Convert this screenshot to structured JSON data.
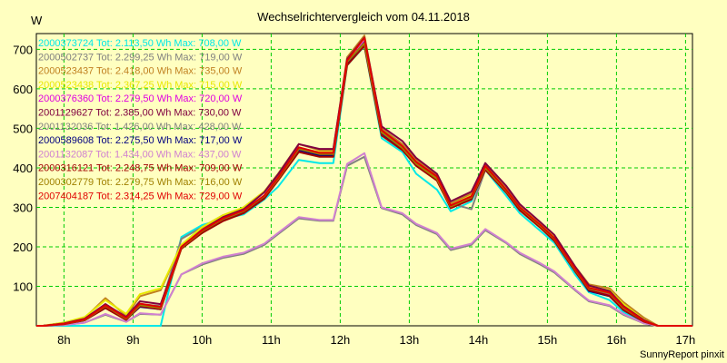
{
  "chart_data": {
    "type": "line",
    "title": "Wechselrichtervergleich vom 04.11.2018",
    "ylabel": "W",
    "xlabel": "",
    "footer": "SunnyReport pinxit",
    "xlim": [
      7.6,
      17.1
    ],
    "ylim": [
      0,
      740
    ],
    "x_ticks": [
      8,
      9,
      10,
      11,
      12,
      13,
      14,
      15,
      16,
      17
    ],
    "x_tick_labels": [
      "8h",
      "9h",
      "10h",
      "11h",
      "12h",
      "13h",
      "14h",
      "15h",
      "16h",
      "17h"
    ],
    "y_ticks": [
      100,
      200,
      300,
      400,
      500,
      600,
      700
    ],
    "y_tick_labels": [
      "100",
      "200",
      "300",
      "400",
      "500",
      "600",
      "700"
    ],
    "grid": true,
    "legend_position": "top-left",
    "x": [
      7.6,
      7.7,
      8.0,
      8.3,
      8.6,
      8.9,
      9.1,
      9.4,
      9.7,
      10.0,
      10.3,
      10.6,
      10.9,
      11.1,
      11.4,
      11.7,
      11.9,
      12.1,
      12.35,
      12.6,
      12.9,
      13.1,
      13.4,
      13.6,
      13.9,
      14.1,
      14.4,
      14.6,
      14.9,
      15.1,
      15.4,
      15.6,
      15.9,
      16.1,
      16.4,
      16.6,
      16.9,
      17.1
    ],
    "series": [
      {
        "name": "2000373724",
        "legend": "2000373724 Tot: 2.113,50 Wh Max: 708,00 W",
        "color": "#00e8e8",
        "values": [
          0,
          0,
          0,
          0,
          0,
          0,
          0,
          0,
          225,
          255,
          270,
          282,
          320,
          352,
          420,
          412,
          412,
          660,
          708,
          475,
          440,
          385,
          345,
          290,
          315,
          395,
          330,
          285,
          240,
          210,
          130,
          85,
          65,
          35,
          10,
          0,
          0,
          0
        ]
      },
      {
        "name": "2000502737",
        "legend": "2000502737 Tot: 2.299,25 Wh Max: 719,00 W",
        "color": "#808080",
        "values": [
          0,
          0,
          5,
          15,
          55,
          15,
          55,
          50,
          220,
          250,
          280,
          292,
          325,
          372,
          450,
          435,
          435,
          665,
          719,
          490,
          450,
          410,
          370,
          310,
          295,
          395,
          340,
          300,
          255,
          225,
          145,
          95,
          80,
          45,
          10,
          0,
          0,
          0
        ]
      },
      {
        "name": "2000523437",
        "legend": "2000523437 Tot: 2.418,00 Wh Max: 735,00 W",
        "color": "#c08020",
        "values": [
          0,
          0,
          8,
          20,
          70,
          25,
          75,
          90,
          205,
          245,
          275,
          300,
          340,
          385,
          460,
          445,
          445,
          680,
          735,
          500,
          460,
          420,
          380,
          310,
          335,
          410,
          350,
          305,
          260,
          230,
          150,
          105,
          95,
          60,
          20,
          0,
          0,
          0
        ]
      },
      {
        "name": "2000523438",
        "legend": "2000523438 Tot: 2.367,25 Wh Max: 715,00 W",
        "color": "#e8e800",
        "values": [
          0,
          0,
          8,
          22,
          65,
          30,
          80,
          95,
          205,
          250,
          280,
          300,
          340,
          380,
          450,
          440,
          440,
          670,
          715,
          485,
          455,
          415,
          375,
          305,
          330,
          400,
          345,
          300,
          258,
          225,
          148,
          100,
          90,
          55,
          15,
          0,
          0,
          0
        ]
      },
      {
        "name": "2000376360",
        "legend": "2000376360 Tot: 2.279,50 Wh Max: 720,00 W",
        "color": "#e000e0",
        "values": [
          0,
          0,
          4,
          14,
          48,
          18,
          50,
          45,
          198,
          238,
          268,
          288,
          325,
          370,
          445,
          432,
          432,
          665,
          720,
          488,
          448,
          408,
          370,
          300,
          322,
          398,
          340,
          295,
          250,
          218,
          140,
          92,
          78,
          42,
          10,
          0,
          0,
          0
        ]
      },
      {
        "name": "2001129627",
        "legend": "2001129627 Tot: 2.385,00 Wh Max: 730,00 W",
        "color": "#800040",
        "values": [
          0,
          0,
          6,
          18,
          55,
          22,
          62,
          55,
          200,
          243,
          275,
          295,
          338,
          383,
          460,
          448,
          448,
          675,
          730,
          505,
          468,
          425,
          385,
          315,
          340,
          412,
          355,
          308,
          262,
          230,
          150,
          102,
          88,
          50,
          14,
          0,
          0,
          0
        ]
      },
      {
        "name": "2001132036",
        "legend": "2001132036 Tot: 1.426,00 Wh Max: 428,00 W",
        "color": "#808080",
        "values": [
          0,
          0,
          2,
          8,
          28,
          10,
          30,
          28,
          130,
          155,
          172,
          182,
          205,
          232,
          272,
          266,
          266,
          405,
          428,
          298,
          282,
          255,
          232,
          192,
          205,
          242,
          210,
          182,
          155,
          135,
          90,
          62,
          50,
          28,
          6,
          0,
          0,
          0
        ]
      },
      {
        "name": "2000589608",
        "legend": "2000589608 Tot: 2.275,50 Wh Max: 717,00 W",
        "color": "#000080",
        "values": [
          0,
          0,
          4,
          14,
          45,
          16,
          48,
          42,
          198,
          238,
          268,
          288,
          325,
          370,
          445,
          432,
          432,
          665,
          717,
          488,
          448,
          408,
          370,
          300,
          322,
          398,
          340,
          295,
          250,
          218,
          140,
          88,
          75,
          40,
          10,
          0,
          0,
          0
        ]
      },
      {
        "name": "2001132087",
        "legend": "2001132087 Tot: 1.434,00 Wh Max: 437,00 W",
        "color": "#d080d0",
        "values": [
          0,
          0,
          2,
          8,
          30,
          10,
          32,
          28,
          130,
          158,
          175,
          185,
          208,
          235,
          275,
          268,
          268,
          410,
          437,
          300,
          285,
          258,
          235,
          195,
          208,
          245,
          212,
          185,
          158,
          138,
          92,
          64,
          52,
          30,
          6,
          0,
          0,
          0
        ]
      },
      {
        "name": "2000316121",
        "legend": "2000316121 Tot: 2.248,75 Wh Max: 709,00 W",
        "color": "#a00000",
        "values": [
          0,
          0,
          4,
          14,
          45,
          15,
          50,
          42,
          195,
          235,
          265,
          285,
          322,
          368,
          440,
          428,
          428,
          660,
          709,
          482,
          445,
          405,
          368,
          298,
          320,
          395,
          338,
          292,
          248,
          215,
          138,
          90,
          76,
          40,
          10,
          0,
          0,
          0
        ]
      },
      {
        "name": "2000302779",
        "legend": "2000302779 Tot: 2.279,75 Wh Max: 716,00 W",
        "color": "#a08000",
        "values": [
          0,
          0,
          5,
          15,
          50,
          18,
          52,
          45,
          198,
          240,
          270,
          290,
          328,
          372,
          448,
          435,
          435,
          668,
          716,
          490,
          450,
          410,
          372,
          302,
          325,
          400,
          342,
          298,
          252,
          220,
          142,
          94,
          82,
          45,
          12,
          0,
          0,
          0
        ]
      },
      {
        "name": "2007404187",
        "legend": "2007404187 Tot: 2.314,25 Wh Max: 729,00 W",
        "color": "#e00000",
        "values": [
          0,
          0,
          5,
          16,
          52,
          20,
          56,
          48,
          200,
          242,
          272,
          292,
          330,
          375,
          452,
          438,
          438,
          672,
          729,
          495,
          455,
          415,
          378,
          305,
          328,
          405,
          345,
          300,
          255,
          222,
          145,
          96,
          84,
          48,
          12,
          0,
          0,
          0
        ]
      }
    ]
  }
}
